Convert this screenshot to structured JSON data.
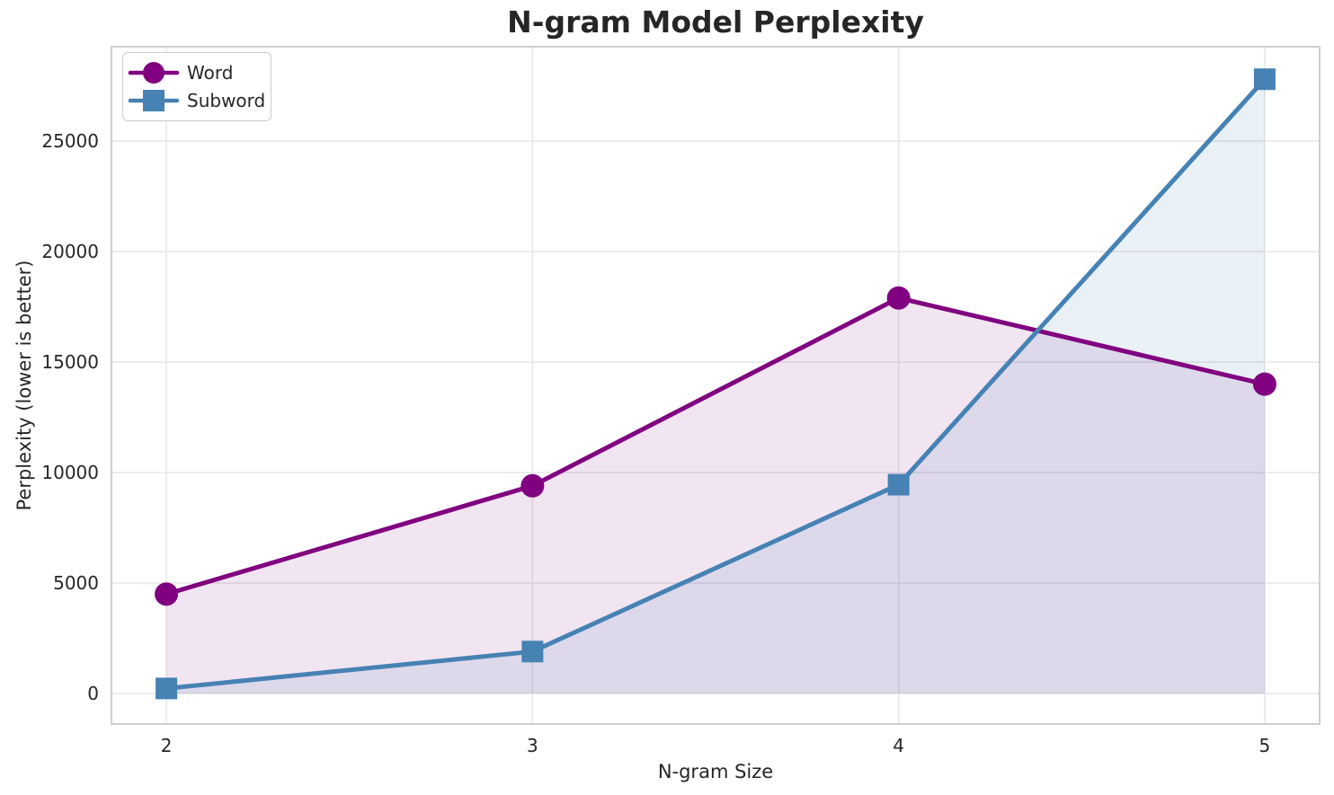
{
  "chart_data": {
    "type": "line",
    "title": "N-gram Model Perplexity",
    "xlabel": "N-gram Size",
    "ylabel": "Perplexity (lower is better)",
    "x": [
      2,
      3,
      4,
      5
    ],
    "series": [
      {
        "name": "Word",
        "color": "#800080",
        "marker": "circle",
        "fill_opacity": 0.1,
        "values": [
          4500,
          9400,
          17900,
          14000
        ]
      },
      {
        "name": "Subword",
        "color": "#4682b4",
        "marker": "square",
        "fill_opacity": 0.12,
        "values": [
          230,
          1900,
          9450,
          27800
        ]
      }
    ],
    "xticks": [
      2,
      3,
      4,
      5
    ],
    "yticks": [
      0,
      5000,
      10000,
      15000,
      20000,
      25000
    ],
    "xlim": [
      1.85,
      5.15
    ],
    "ylim": [
      -1380,
      29270
    ],
    "grid": true,
    "area_fill_to_zero": true,
    "legend_position": "upper left",
    "colors": {
      "grid": "#e7e7e7",
      "spine": "#c9c9c9",
      "text": "#262626",
      "background": "#ffffff"
    }
  }
}
